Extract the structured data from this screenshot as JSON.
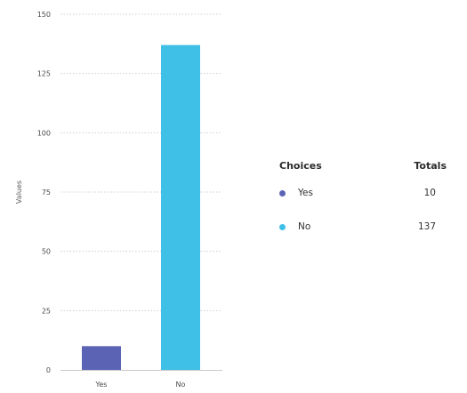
{
  "chart_data": {
    "type": "bar",
    "categories": [
      "Yes",
      "No"
    ],
    "values": [
      10,
      137
    ],
    "colors": [
      "#5b63b5",
      "#3fc0e6"
    ],
    "xlabel": "",
    "ylabel": "Values",
    "ylim": [
      0,
      150
    ],
    "yticks": [
      0,
      25,
      50,
      75,
      100,
      125,
      150
    ],
    "grid": true,
    "legend_placement": "right"
  },
  "legend": {
    "header_choices": "Choices",
    "header_totals": "Totals",
    "rows": [
      {
        "label": "Yes",
        "total": "10",
        "color": "#5b63b5"
      },
      {
        "label": "No",
        "total": "137",
        "color": "#3fc0e6"
      }
    ]
  }
}
